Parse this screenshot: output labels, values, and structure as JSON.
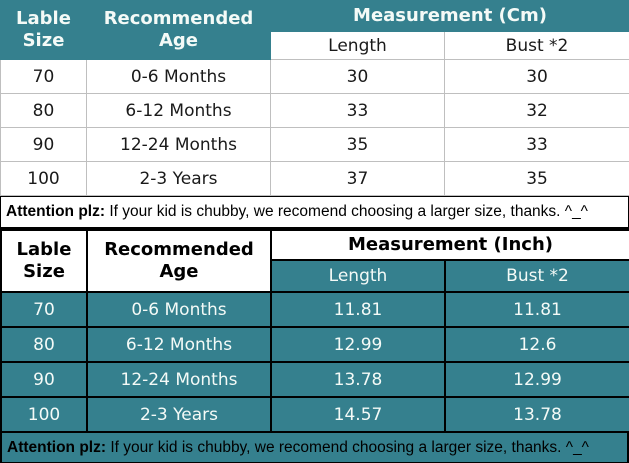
{
  "colors": {
    "teal": "#35808e",
    "grid_gray": "#bfbfbf",
    "border_black": "#000000",
    "header_text_light": "#f4faf7",
    "body_text_dark": "#1a1a1a"
  },
  "cm_table": {
    "header": {
      "label_size": "Lable Size",
      "recommended_age": "Recommended Age",
      "measurement": "Measurement (Cm)",
      "length": "Length",
      "bust": "Bust *2"
    },
    "rows": [
      [
        "70",
        "0-6 Months",
        "30",
        "30"
      ],
      [
        "80",
        "6-12 Months",
        "33",
        "32"
      ],
      [
        "90",
        "12-24 Months",
        "35",
        "33"
      ],
      [
        "100",
        "2-3 Years",
        "37",
        "35"
      ]
    ]
  },
  "inch_table": {
    "header": {
      "label_size": "Lable Size",
      "recommended_age": "Recommended Age",
      "measurement": "Measurement (Inch)",
      "length": "Length",
      "bust": "Bust *2"
    },
    "rows": [
      [
        "70",
        "0-6 Months",
        "11.81",
        "11.81"
      ],
      [
        "80",
        "6-12 Months",
        "12.99",
        "12.6"
      ],
      [
        "90",
        "12-24 Months",
        "13.78",
        "12.99"
      ],
      [
        "100",
        "2-3 Years",
        "14.57",
        "13.78"
      ]
    ]
  },
  "notes": [
    {
      "label": "Attention plz:",
      "text": " If your kid is chubby, we recomend choosing a larger size, thanks. ^_^"
    },
    {
      "label": "Attention plz:",
      "text": " If your kid is chubby, we recomend choosing a larger size, thanks. ^_^"
    }
  ]
}
